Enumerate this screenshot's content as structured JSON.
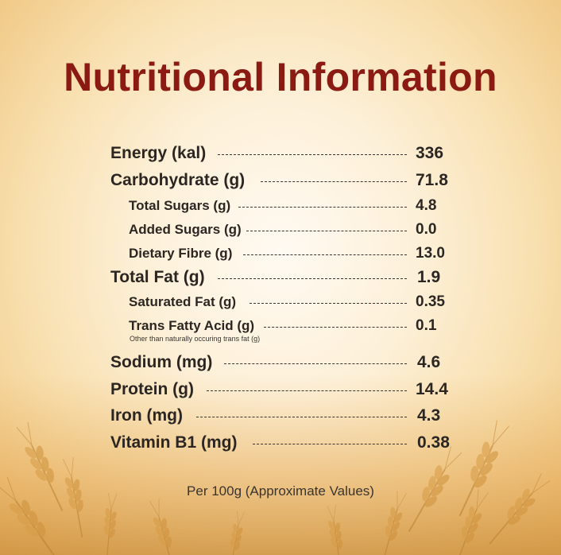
{
  "title": "Nutritional Information",
  "rows": [
    {
      "label": "Energy (kal)",
      "value": "336"
    },
    {
      "label": "Carbohydrate (g)",
      "value": "71.8"
    },
    {
      "label": "Total Sugars (g)",
      "value": "4.8"
    },
    {
      "label": "Added Sugars (g)",
      "value": "0.0"
    },
    {
      "label": "Dietary Fibre (g)",
      "value": "13.0"
    },
    {
      "label": "Total Fat (g)",
      "value": "1.9"
    },
    {
      "label": "Saturated Fat (g)",
      "value": "0.35"
    },
    {
      "label": "Trans Fatty Acid (g)",
      "value": "0.1",
      "note": "Other than naturally occuring trans fat (g)"
    },
    {
      "label": "Sodium (mg)",
      "value": "4.6"
    },
    {
      "label": "Protein (g)",
      "value": "14.4"
    },
    {
      "label": "Iron (mg)",
      "value": "4.3"
    },
    {
      "label": "Vitamin B1 (mg)",
      "value": "0.38"
    }
  ],
  "footer": "Per 100g (Approximate Values)"
}
